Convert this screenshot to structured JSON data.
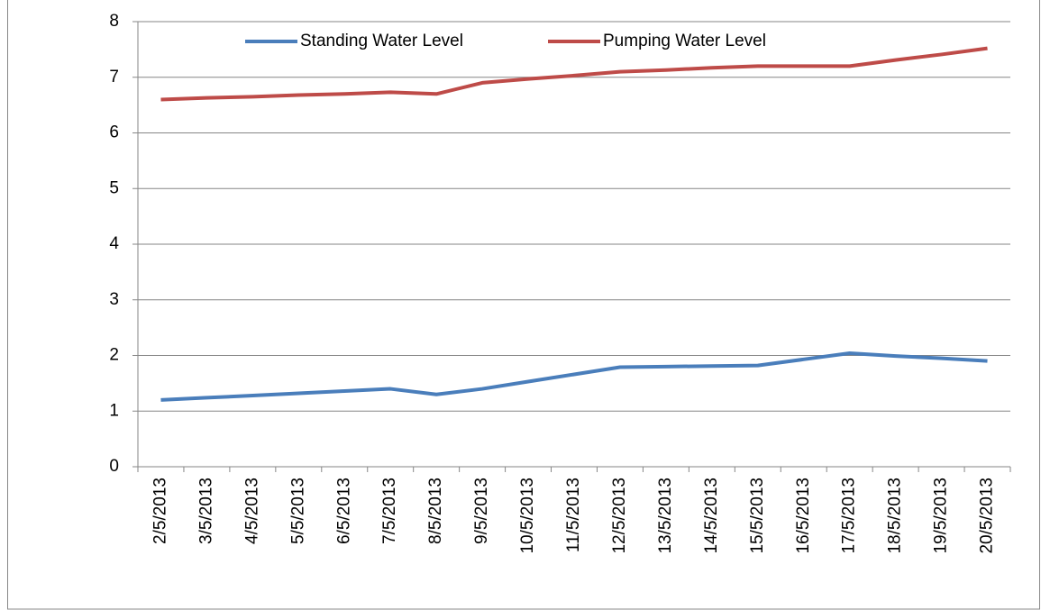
{
  "chart_data": {
    "type": "line",
    "categories": [
      "2/5/2013",
      "3/5/2013",
      "4/5/2013",
      "5/5/2013",
      "6/5/2013",
      "7/5/2013",
      "8/5/2013",
      "9/5/2013",
      "10/5/2013",
      "11/5/2013",
      "12/5/2013",
      "13/5/2013",
      "14/5/2013",
      "15/5/2013",
      "16/5/2013",
      "17/5/2013",
      "18/5/2013",
      "19/5/2013",
      "20/5/2013"
    ],
    "series": [
      {
        "name": "Standing Water Level",
        "color": "#4a7ebb",
        "values": [
          1.2,
          1.24,
          1.28,
          1.32,
          1.36,
          1.4,
          1.3,
          1.4,
          1.53,
          1.66,
          1.79,
          1.8,
          1.81,
          1.82,
          1.93,
          2.04,
          1.99,
          1.95,
          1.9
        ]
      },
      {
        "name": "Pumping Water Level",
        "color": "#be4b48",
        "values": [
          6.6,
          6.63,
          6.65,
          6.68,
          6.7,
          6.73,
          6.7,
          6.9,
          6.97,
          7.03,
          7.1,
          7.13,
          7.17,
          7.2,
          7.2,
          7.2,
          7.31,
          7.41,
          7.52
        ]
      }
    ],
    "ylim": [
      0,
      8
    ],
    "yticks": [
      0,
      1,
      2,
      3,
      4,
      5,
      6,
      7,
      8
    ],
    "grid": true,
    "legend": "top"
  }
}
